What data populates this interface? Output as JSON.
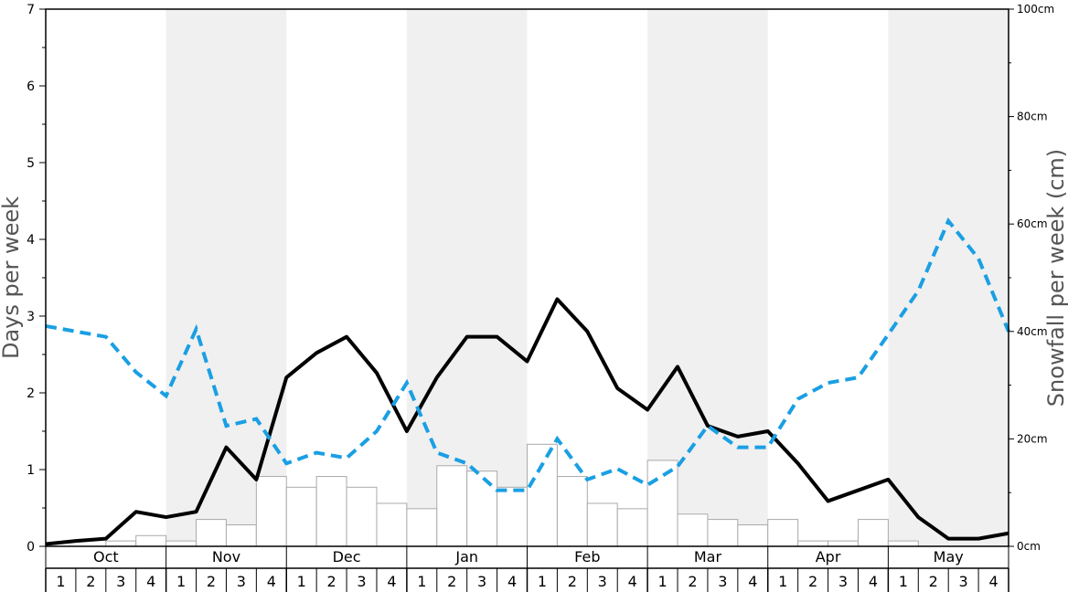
{
  "chart_data": {
    "type": "bar",
    "title": "",
    "months": [
      "Oct",
      "Nov",
      "Dec",
      "Jan",
      "Feb",
      "Mar",
      "Apr",
      "May"
    ],
    "week_labels": [
      "1",
      "2",
      "3",
      "4"
    ],
    "left_axis": {
      "label": "Days per week",
      "ylim": [
        0,
        7
      ],
      "ticks": [
        "0",
        "1",
        "2",
        "3",
        "4",
        "5",
        "6",
        "7"
      ]
    },
    "right_axis": {
      "label": "Snowfall per week (cm)",
      "ylim": [
        0,
        100
      ],
      "ticks": [
        "0cm",
        "20cm",
        "40cm",
        "60cm",
        "80cm",
        "100cm"
      ]
    },
    "colors": {
      "bar_fill": "#ffffff",
      "bar_stroke": "#aaaaaa",
      "snow_days_line": "#000000",
      "dashed_line": "#1a9fe3",
      "alt_month_band": "#f0f0f0"
    },
    "series": [
      {
        "type": "bar",
        "axis": "right",
        "values": [
          0,
          0,
          1,
          2,
          1,
          5,
          4,
          13,
          11,
          13,
          11,
          8,
          7,
          15,
          14,
          11,
          19,
          13,
          8,
          7,
          16,
          6,
          5,
          4,
          5,
          1,
          1,
          5,
          1,
          0,
          0,
          0
        ]
      },
      {
        "type": "line",
        "style": "solid",
        "axis": "left",
        "values": [
          0.03,
          0.07,
          0.1,
          0.45,
          0.38,
          0.45,
          1.29,
          0.87,
          2.2,
          2.52,
          2.73,
          2.26,
          1.5,
          2.2,
          2.73,
          2.73,
          2.41,
          3.22,
          2.8,
          2.06,
          1.78,
          2.34,
          1.57,
          1.43,
          1.5,
          1.08,
          0.59,
          0.73,
          0.87,
          0.38,
          0.1,
          0.1,
          0.17
        ]
      },
      {
        "type": "line",
        "style": "dashed",
        "axis": "left",
        "values": [
          2.87,
          2.8,
          2.73,
          2.27,
          1.96,
          2.83,
          1.57,
          1.66,
          1.08,
          1.22,
          1.15,
          1.5,
          2.13,
          1.22,
          1.08,
          0.73,
          0.73,
          1.4,
          0.87,
          1.01,
          0.8,
          1.04,
          1.57,
          1.29,
          1.29,
          1.92,
          2.13,
          2.2,
          2.76,
          3.33,
          4.24,
          3.75,
          2.8
        ]
      }
    ]
  }
}
